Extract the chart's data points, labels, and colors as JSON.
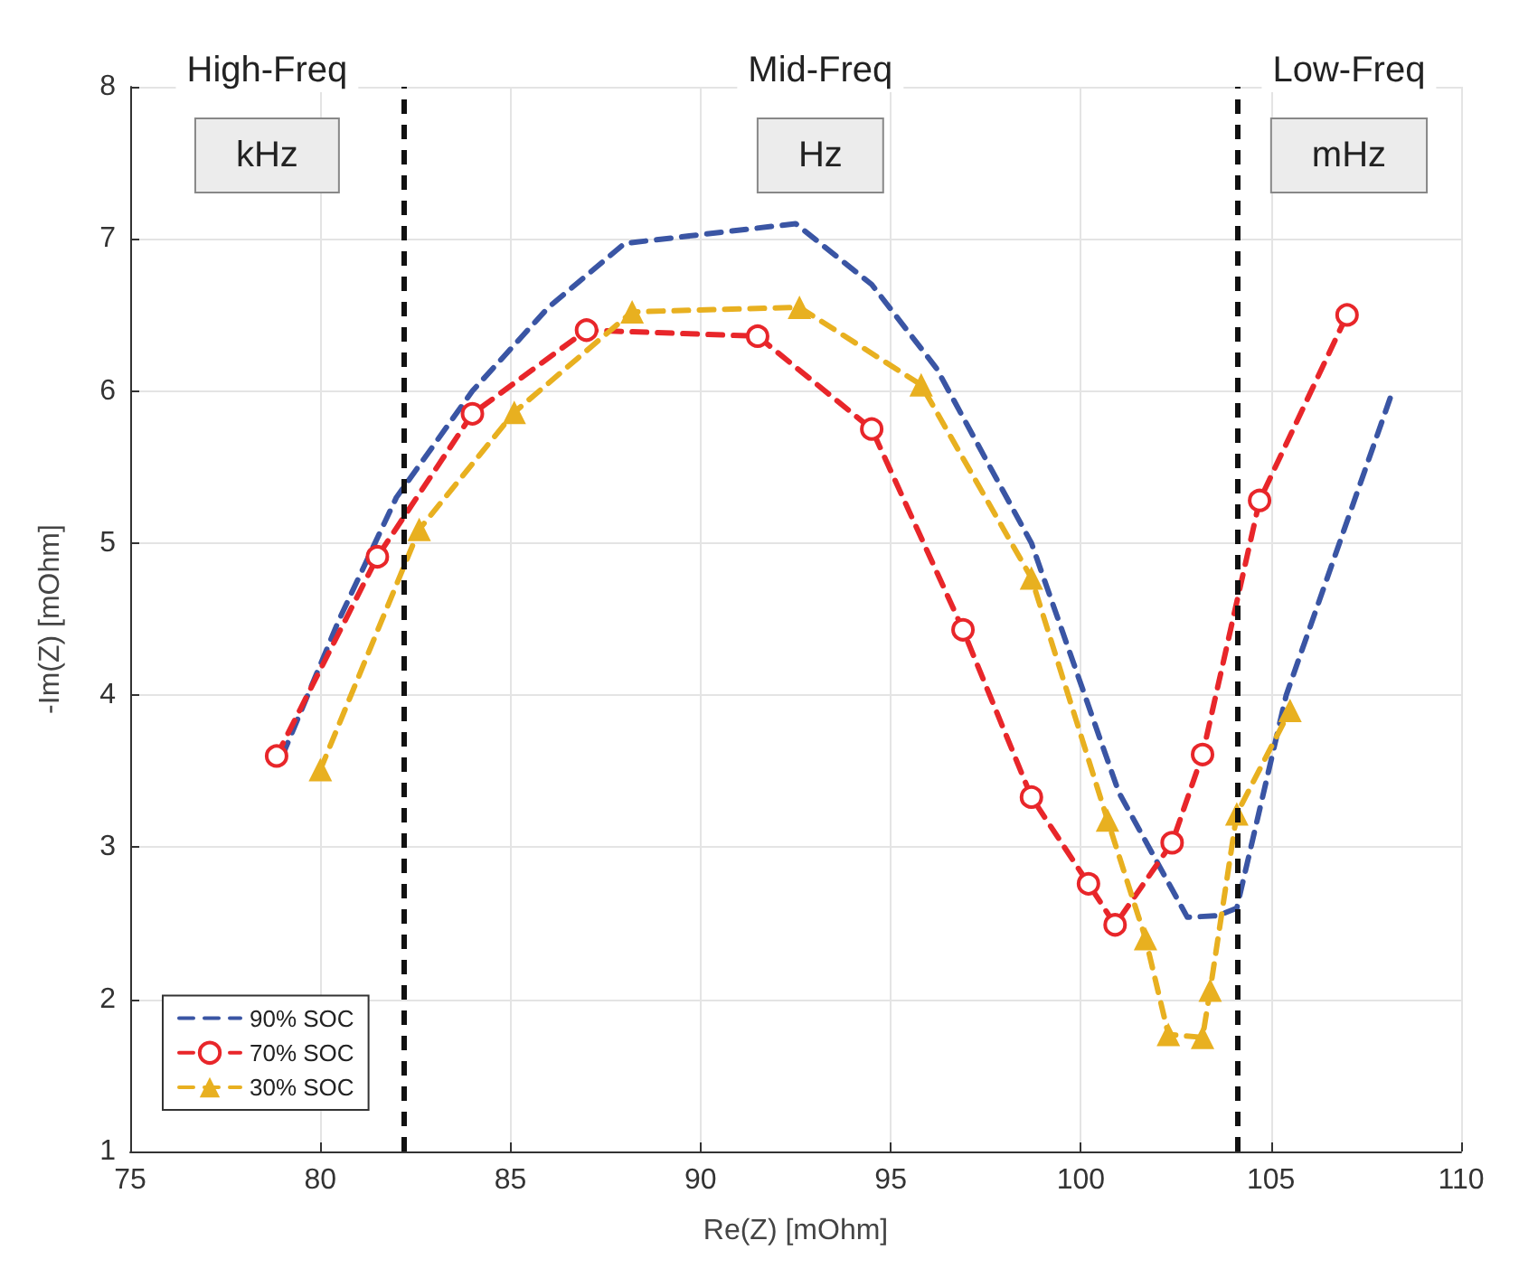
{
  "chart_data": {
    "type": "line",
    "xlabel": "Re(Z) [mOhm]",
    "ylabel": "-Im(Z) [mOhm]",
    "xlim": [
      75,
      110
    ],
    "xticks": [
      75,
      80,
      85,
      90,
      95,
      100,
      105,
      110
    ],
    "ylim": [
      1,
      8
    ],
    "yticks": [
      1,
      2,
      3,
      4,
      5,
      6,
      7,
      8
    ],
    "grid": true,
    "legend": "bottom left",
    "line_style": "dashed",
    "series": [
      {
        "name": "90% SOC",
        "color": "#3a55a4",
        "marker": "none",
        "x": [
          79,
          80.5,
          82,
          84,
          86,
          88,
          92.5,
          94.5,
          96.2,
          98.7,
          101,
          102.8,
          103.6,
          104.1,
          105.4,
          108.2
        ],
        "values": [
          3.6,
          4.5,
          5.3,
          6.0,
          6.55,
          6.97,
          7.1,
          6.7,
          6.15,
          5.0,
          3.36,
          2.54,
          2.55,
          2.6,
          4.0,
          6.0
        ]
      },
      {
        "name": "70% SOC",
        "color": "#e8262a",
        "marker": "circle",
        "x": [
          78.85,
          81.5,
          84,
          87,
          91.5,
          94.5,
          96.9,
          98.7,
          100.2,
          100.9,
          102.4,
          103.2,
          104.7,
          107
        ],
        "values": [
          3.6,
          4.91,
          5.85,
          6.4,
          6.36,
          5.75,
          4.43,
          3.33,
          2.76,
          2.49,
          3.03,
          3.61,
          5.28,
          6.5
        ]
      },
      {
        "name": "30% SOC",
        "color": "#e8b020",
        "marker": "triangle",
        "x": [
          80,
          82.6,
          85.1,
          88.2,
          92.6,
          95.8,
          98.7,
          100.7,
          101.7,
          102.3,
          103.2,
          103.4,
          104.1,
          105.5
        ],
        "values": [
          3.51,
          5.09,
          5.86,
          6.52,
          6.55,
          6.04,
          4.77,
          3.18,
          2.4,
          1.77,
          1.75,
          2.06,
          3.22,
          3.9
        ]
      }
    ],
    "ref_lines": [
      {
        "axis": "x",
        "value": 82.2,
        "color": "#111111",
        "line_style": "dashed"
      },
      {
        "axis": "x",
        "value": 104.1,
        "color": "#111111",
        "line_style": "dashed"
      }
    ],
    "annotations": [
      "High-Freq",
      "Mid-Freq",
      "Low-Freq",
      "kHz",
      "Hz",
      "mHz"
    ]
  }
}
